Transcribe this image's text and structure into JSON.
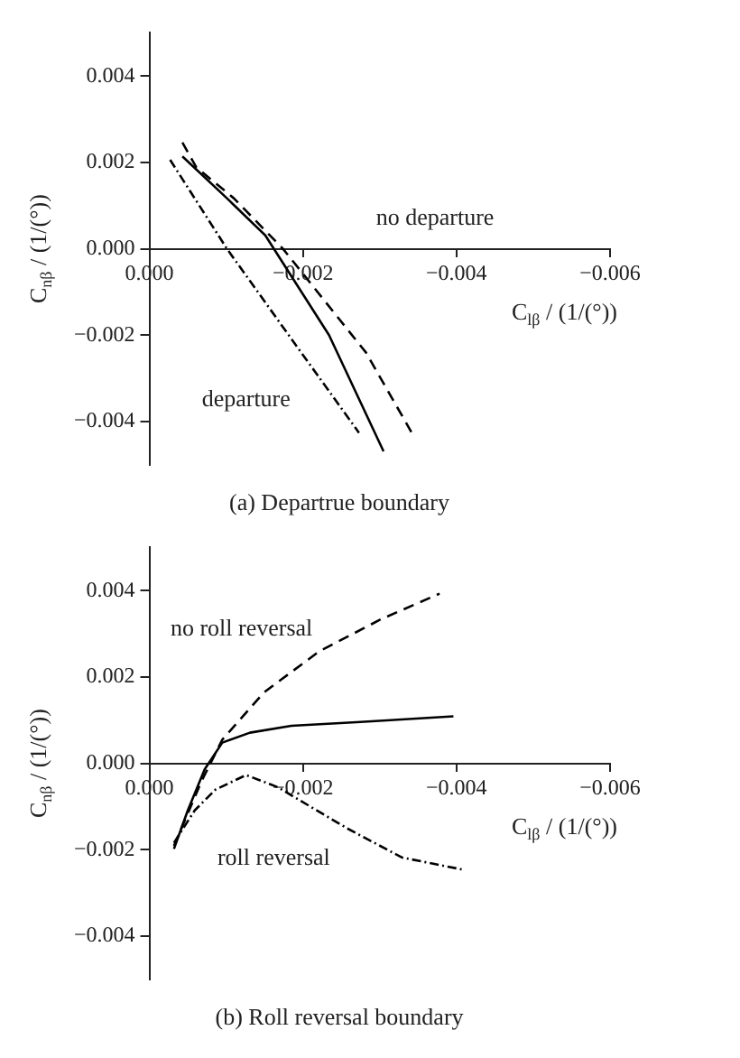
{
  "chart_data": [
    {
      "type": "line",
      "title": "(a) Departrue boundary",
      "xlabel": "C$_{lβ}$ / (1/(°))",
      "ylabel": "C$_{nβ}$ / (1/(°))",
      "marker": "none",
      "grid": false,
      "xlim": [
        0,
        -0.006
      ],
      "xticks": [
        {
          "value": 0,
          "label": "0.000"
        },
        {
          "value": -0.002,
          "label": "−0.002"
        },
        {
          "value": -0.004,
          "label": "−0.004"
        },
        {
          "value": -0.006,
          "label": "−0.006"
        }
      ],
      "ylim": [
        -0.005,
        0.005
      ],
      "yticks": [
        {
          "value": 0.004,
          "label": "0.004"
        },
        {
          "value": 0.002,
          "label": "0.002"
        },
        {
          "value": 0,
          "label": "0.000"
        },
        {
          "value": -0.002,
          "label": "−0.002"
        },
        {
          "value": -0.004,
          "label": "−0.004"
        }
      ],
      "series": [
        {
          "color": "#000000",
          "line_style": "solid",
          "x": [
            -0.00043,
            -0.00101,
            -0.00151,
            -0.00234,
            -0.00305
          ],
          "values": [
            0.00214,
            0.00117,
            0.00031,
            -0.002,
            -0.00469
          ]
        },
        {
          "color": "#000000",
          "line_style": "dashed",
          "x": [
            -0.00043,
            -0.00061,
            -0.0011,
            -0.00174,
            -0.00282,
            -0.00344
          ],
          "values": [
            0.00246,
            0.00189,
            0.00117,
            0,
            -0.0024,
            -0.00433
          ]
        },
        {
          "color": "#000000",
          "line_style": "dotted",
          "x": [
            -0.00027,
            -0.00101,
            -0.00192,
            -0.00273
          ],
          "values": [
            0.00206,
            0,
            -0.00226,
            -0.00426
          ]
        }
      ],
      "annotations": [
        "no departure",
        "departure"
      ]
    },
    {
      "type": "line",
      "title": "(b) Roll reversal boundary",
      "xlabel": "C$_{lβ}$ / (1/(°))",
      "ylabel": "C$_{nβ}$ / (1/(°))",
      "marker": "none",
      "grid": false,
      "xlim": [
        0,
        -0.006
      ],
      "xticks": [
        {
          "value": 0,
          "label": "0.000"
        },
        {
          "value": -0.002,
          "label": "−0.002"
        },
        {
          "value": -0.004,
          "label": "−0.004"
        },
        {
          "value": -0.006,
          "label": "−0.006"
        }
      ],
      "ylim": [
        -0.005,
        0.005
      ],
      "yticks": [
        {
          "value": 0.004,
          "label": "0.004"
        },
        {
          "value": 0.002,
          "label": "0.002"
        },
        {
          "value": 0,
          "label": "0.000"
        },
        {
          "value": -0.002,
          "label": "−0.002"
        },
        {
          "value": -0.004,
          "label": "−0.004"
        }
      ],
      "series": [
        {
          "color": "#000000",
          "line_style": "solid",
          "x": [
            -0.00032,
            -0.0005,
            -0.00072,
            -0.00095,
            -0.00131,
            -0.00185,
            -0.00275,
            -0.00396
          ],
          "values": [
            -0.00198,
            -0.00109,
            -0.00014,
            0.00048,
            0.00071,
            0.00087,
            0.00096,
            0.00109
          ]
        },
        {
          "color": "#000000",
          "line_style": "dashed",
          "x": [
            -0.00032,
            -0.00068,
            -0.00095,
            -0.00149,
            -0.00221,
            -0.00302,
            -0.00378
          ],
          "values": [
            -0.00191,
            -0.00041,
            0.00055,
            0.00164,
            0.00259,
            0.00334,
            0.00393
          ]
        },
        {
          "color": "#000000",
          "line_style": "dotted",
          "x": [
            -0.00032,
            -0.00059,
            -0.00086,
            -0.00126,
            -0.00167,
            -0.00257,
            -0.00329,
            -0.00408
          ],
          "values": [
            -0.00184,
            -0.00109,
            -0.00061,
            -0.00027,
            -0.00055,
            -0.0015,
            -0.00218,
            -0.00246
          ]
        }
      ],
      "annotations": [
        "no roll reversal",
        "roll reversal"
      ]
    }
  ]
}
